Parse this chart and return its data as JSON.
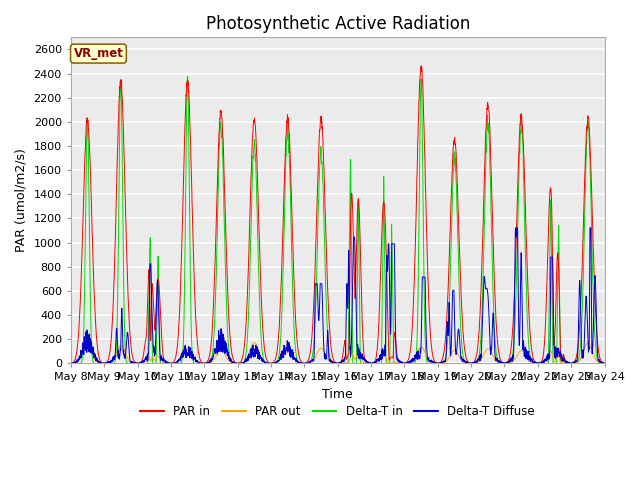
{
  "title": "Photosynthetic Active Radiation",
  "ylabel": "PAR (umol/m2/s)",
  "xlabel": "Time",
  "ylim": [
    0,
    2700
  ],
  "yticks": [
    0,
    200,
    400,
    600,
    800,
    1000,
    1200,
    1400,
    1600,
    1800,
    2000,
    2200,
    2400,
    2600
  ],
  "n_days": 16,
  "label_text": "VR_met",
  "legend_items": [
    {
      "label": "PAR in",
      "color": "#ff0000"
    },
    {
      "label": "PAR out",
      "color": "#ffa500"
    },
    {
      "label": "Delta-T in",
      "color": "#00dd00"
    },
    {
      "label": "Delta-T Diffuse",
      "color": "#0000cc"
    }
  ],
  "axes_facecolor": "#ebebeb",
  "fig_facecolor": "#ffffff",
  "grid_color": "#ffffff",
  "title_fontsize": 12,
  "axes_label_fontsize": 9,
  "tick_label_fontsize": 8
}
